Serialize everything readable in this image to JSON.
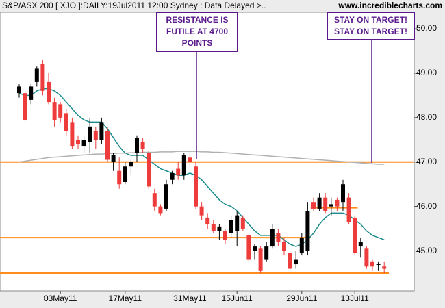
{
  "chart_data": {
    "type": "candlestick",
    "title": "S&P/ASX 200 [ XJO ]:DAILY:19Jul2011 12:00 Sydney : Data Delayed >..",
    "source": "www.incrediblecharts.com",
    "categories": [
      null,
      null,
      null,
      null,
      null,
      null,
      null,
      "03May11",
      null,
      null,
      null,
      null,
      null,
      null,
      null,
      null,
      null,
      null,
      "17May11",
      null,
      null,
      null,
      null,
      null,
      null,
      null,
      null,
      null,
      null,
      "31May11",
      null,
      null,
      null,
      null,
      null,
      null,
      null,
      "15Jun11",
      null,
      null,
      null,
      null,
      null,
      null,
      null,
      null,
      null,
      null,
      "29Jun11",
      null,
      null,
      null,
      null,
      null,
      null,
      null,
      null,
      "13Jul11",
      null,
      null,
      null,
      null,
      null
    ],
    "open": [
      48.55,
      48.55,
      48.4,
      48.8,
      49.2,
      48.8,
      48.35,
      48.3,
      48.1,
      47.9,
      47.5,
      47.35,
      47.45,
      47.7,
      47.5,
      47.7,
      47.0,
      46.8,
      46.55,
      46.9,
      47.2,
      47.45,
      47.2,
      46.3,
      46.0,
      45.95,
      46.6,
      46.85,
      46.7,
      47.1,
      46.9,
      46.0,
      45.75,
      45.6,
      45.45,
      45.45,
      45.4,
      45.45,
      45.75,
      45.35,
      45.0,
      45.05,
      44.8,
      45.1,
      45.4,
      45.2,
      44.95,
      44.7,
      44.95,
      45.0,
      46.1,
      45.95,
      46.2,
      46.0,
      46.15,
      46.1,
      46.2,
      45.75,
      45.1,
      45.05,
      44.75,
      44.7,
      44.65
    ],
    "high": [
      48.75,
      48.6,
      48.75,
      49.15,
      49.3,
      49.0,
      48.45,
      48.35,
      48.2,
      48.0,
      47.6,
      47.6,
      48.0,
      47.8,
      48.0,
      47.8,
      47.2,
      47.1,
      47.0,
      47.05,
      47.6,
      47.55,
      47.25,
      46.4,
      46.05,
      46.6,
      46.8,
      47.0,
      47.2,
      47.25,
      47.0,
      46.1,
      45.85,
      45.7,
      45.6,
      45.5,
      45.8,
      45.9,
      45.8,
      45.4,
      45.15,
      45.1,
      45.2,
      45.6,
      45.5,
      45.3,
      45.0,
      45.0,
      45.4,
      46.1,
      46.2,
      46.3,
      46.3,
      46.2,
      46.2,
      46.6,
      46.3,
      45.8,
      45.3,
      45.1,
      44.8,
      44.75,
      44.75
    ],
    "low": [
      48.45,
      47.9,
      48.3,
      48.7,
      48.5,
      48.3,
      47.8,
      47.9,
      47.6,
      47.3,
      47.3,
      47.2,
      47.2,
      47.3,
      47.4,
      47.0,
      46.8,
      46.4,
      46.5,
      46.7,
      47.0,
      47.2,
      46.4,
      45.9,
      45.8,
      45.9,
      46.5,
      46.6,
      46.6,
      46.9,
      45.95,
      45.7,
      45.5,
      45.4,
      45.25,
      45.15,
      45.3,
      45.1,
      45.45,
      44.75,
      44.8,
      44.5,
      44.75,
      45.05,
      45.1,
      44.9,
      44.55,
      44.6,
      44.9,
      44.9,
      45.9,
      45.9,
      45.85,
      45.8,
      45.9,
      45.9,
      45.6,
      44.9,
      44.85,
      44.6,
      44.55,
      44.55,
      44.5
    ],
    "close": [
      48.7,
      47.95,
      48.7,
      49.1,
      48.6,
      48.35,
      47.95,
      48.0,
      47.7,
      47.35,
      47.4,
      47.5,
      47.8,
      47.5,
      47.9,
      47.05,
      47.15,
      46.5,
      46.9,
      47.0,
      47.55,
      47.3,
      46.45,
      46.0,
      45.85,
      46.5,
      46.75,
      46.7,
      47.15,
      47.0,
      46.0,
      45.8,
      45.6,
      45.45,
      45.55,
      45.25,
      45.7,
      45.8,
      45.5,
      44.8,
      45.1,
      44.55,
      45.1,
      45.5,
      45.2,
      45.0,
      44.6,
      44.8,
      45.3,
      45.9,
      45.95,
      46.2,
      45.9,
      46.05,
      46.0,
      46.5,
      45.65,
      44.95,
      45.2,
      44.65,
      44.65,
      44.7,
      44.6
    ],
    "up_color": "#000000",
    "down_color": "#ee3b3b",
    "series": [
      {
        "color": "#1a8a8a",
        "values": [
          48.55,
          48.5,
          48.5,
          48.6,
          48.65,
          48.65,
          48.6,
          48.5,
          48.35,
          48.2,
          48.05,
          47.95,
          47.9,
          47.9,
          47.9,
          47.75,
          47.55,
          47.35,
          47.2,
          47.15,
          47.15,
          47.15,
          47.05,
          46.95,
          46.85,
          46.8,
          46.75,
          46.7,
          46.7,
          46.75,
          46.7,
          46.6,
          46.45,
          46.3,
          46.15,
          46.05,
          46.0,
          45.9,
          45.75,
          45.6,
          45.45,
          45.35,
          45.35,
          45.35,
          45.35,
          45.25,
          45.15,
          45.1,
          45.15,
          45.25,
          45.4,
          45.6,
          45.75,
          45.85,
          45.85,
          45.85,
          45.8,
          45.7,
          45.6,
          45.45,
          45.35,
          45.3,
          45.25
        ]
      },
      {
        "color": "#b0b0b0",
        "values": [
          47.0,
          47.02,
          47.04,
          47.06,
          47.08,
          47.1,
          47.11,
          47.12,
          47.13,
          47.14,
          47.15,
          47.16,
          47.17,
          47.18,
          47.18,
          47.19,
          47.19,
          47.2,
          47.2,
          47.21,
          47.21,
          47.22,
          47.22,
          47.22,
          47.23,
          47.23,
          47.23,
          47.24,
          47.24,
          47.24,
          47.24,
          47.23,
          47.23,
          47.22,
          47.22,
          47.21,
          47.2,
          47.19,
          47.18,
          47.17,
          47.16,
          47.15,
          47.14,
          47.13,
          47.12,
          47.11,
          47.1,
          47.09,
          47.08,
          47.07,
          47.06,
          47.05,
          47.04,
          47.03,
          47.02,
          47.01,
          47.0,
          46.99,
          46.98,
          46.97,
          46.96,
          46.95,
          46.95
        ]
      }
    ],
    "levels": [
      47.0,
      45.3,
      44.5,
      45.97
    ],
    "level_color": "#ff8c1a",
    "ylim": [
      44.1,
      50.37
    ],
    "yticks": [
      {
        "value": 45,
        "label": "45.00"
      },
      {
        "value": 46,
        "label": "46.00"
      },
      {
        "value": 47,
        "label": "47.00"
      },
      {
        "value": 48,
        "label": "48.00"
      },
      {
        "value": 49,
        "label": "49.00"
      },
      {
        "value": 50,
        "label": "50.00"
      }
    ],
    "annotations": [
      {
        "lines": [
          "RESISTANCE IS",
          "FUTILE AT 4700",
          "POINTS"
        ],
        "color": "#5a1a8c"
      },
      {
        "lines": [
          "STAY ON TARGET!",
          "STAY ON TARGET!"
        ],
        "color": "#5a1a8c"
      }
    ]
  }
}
